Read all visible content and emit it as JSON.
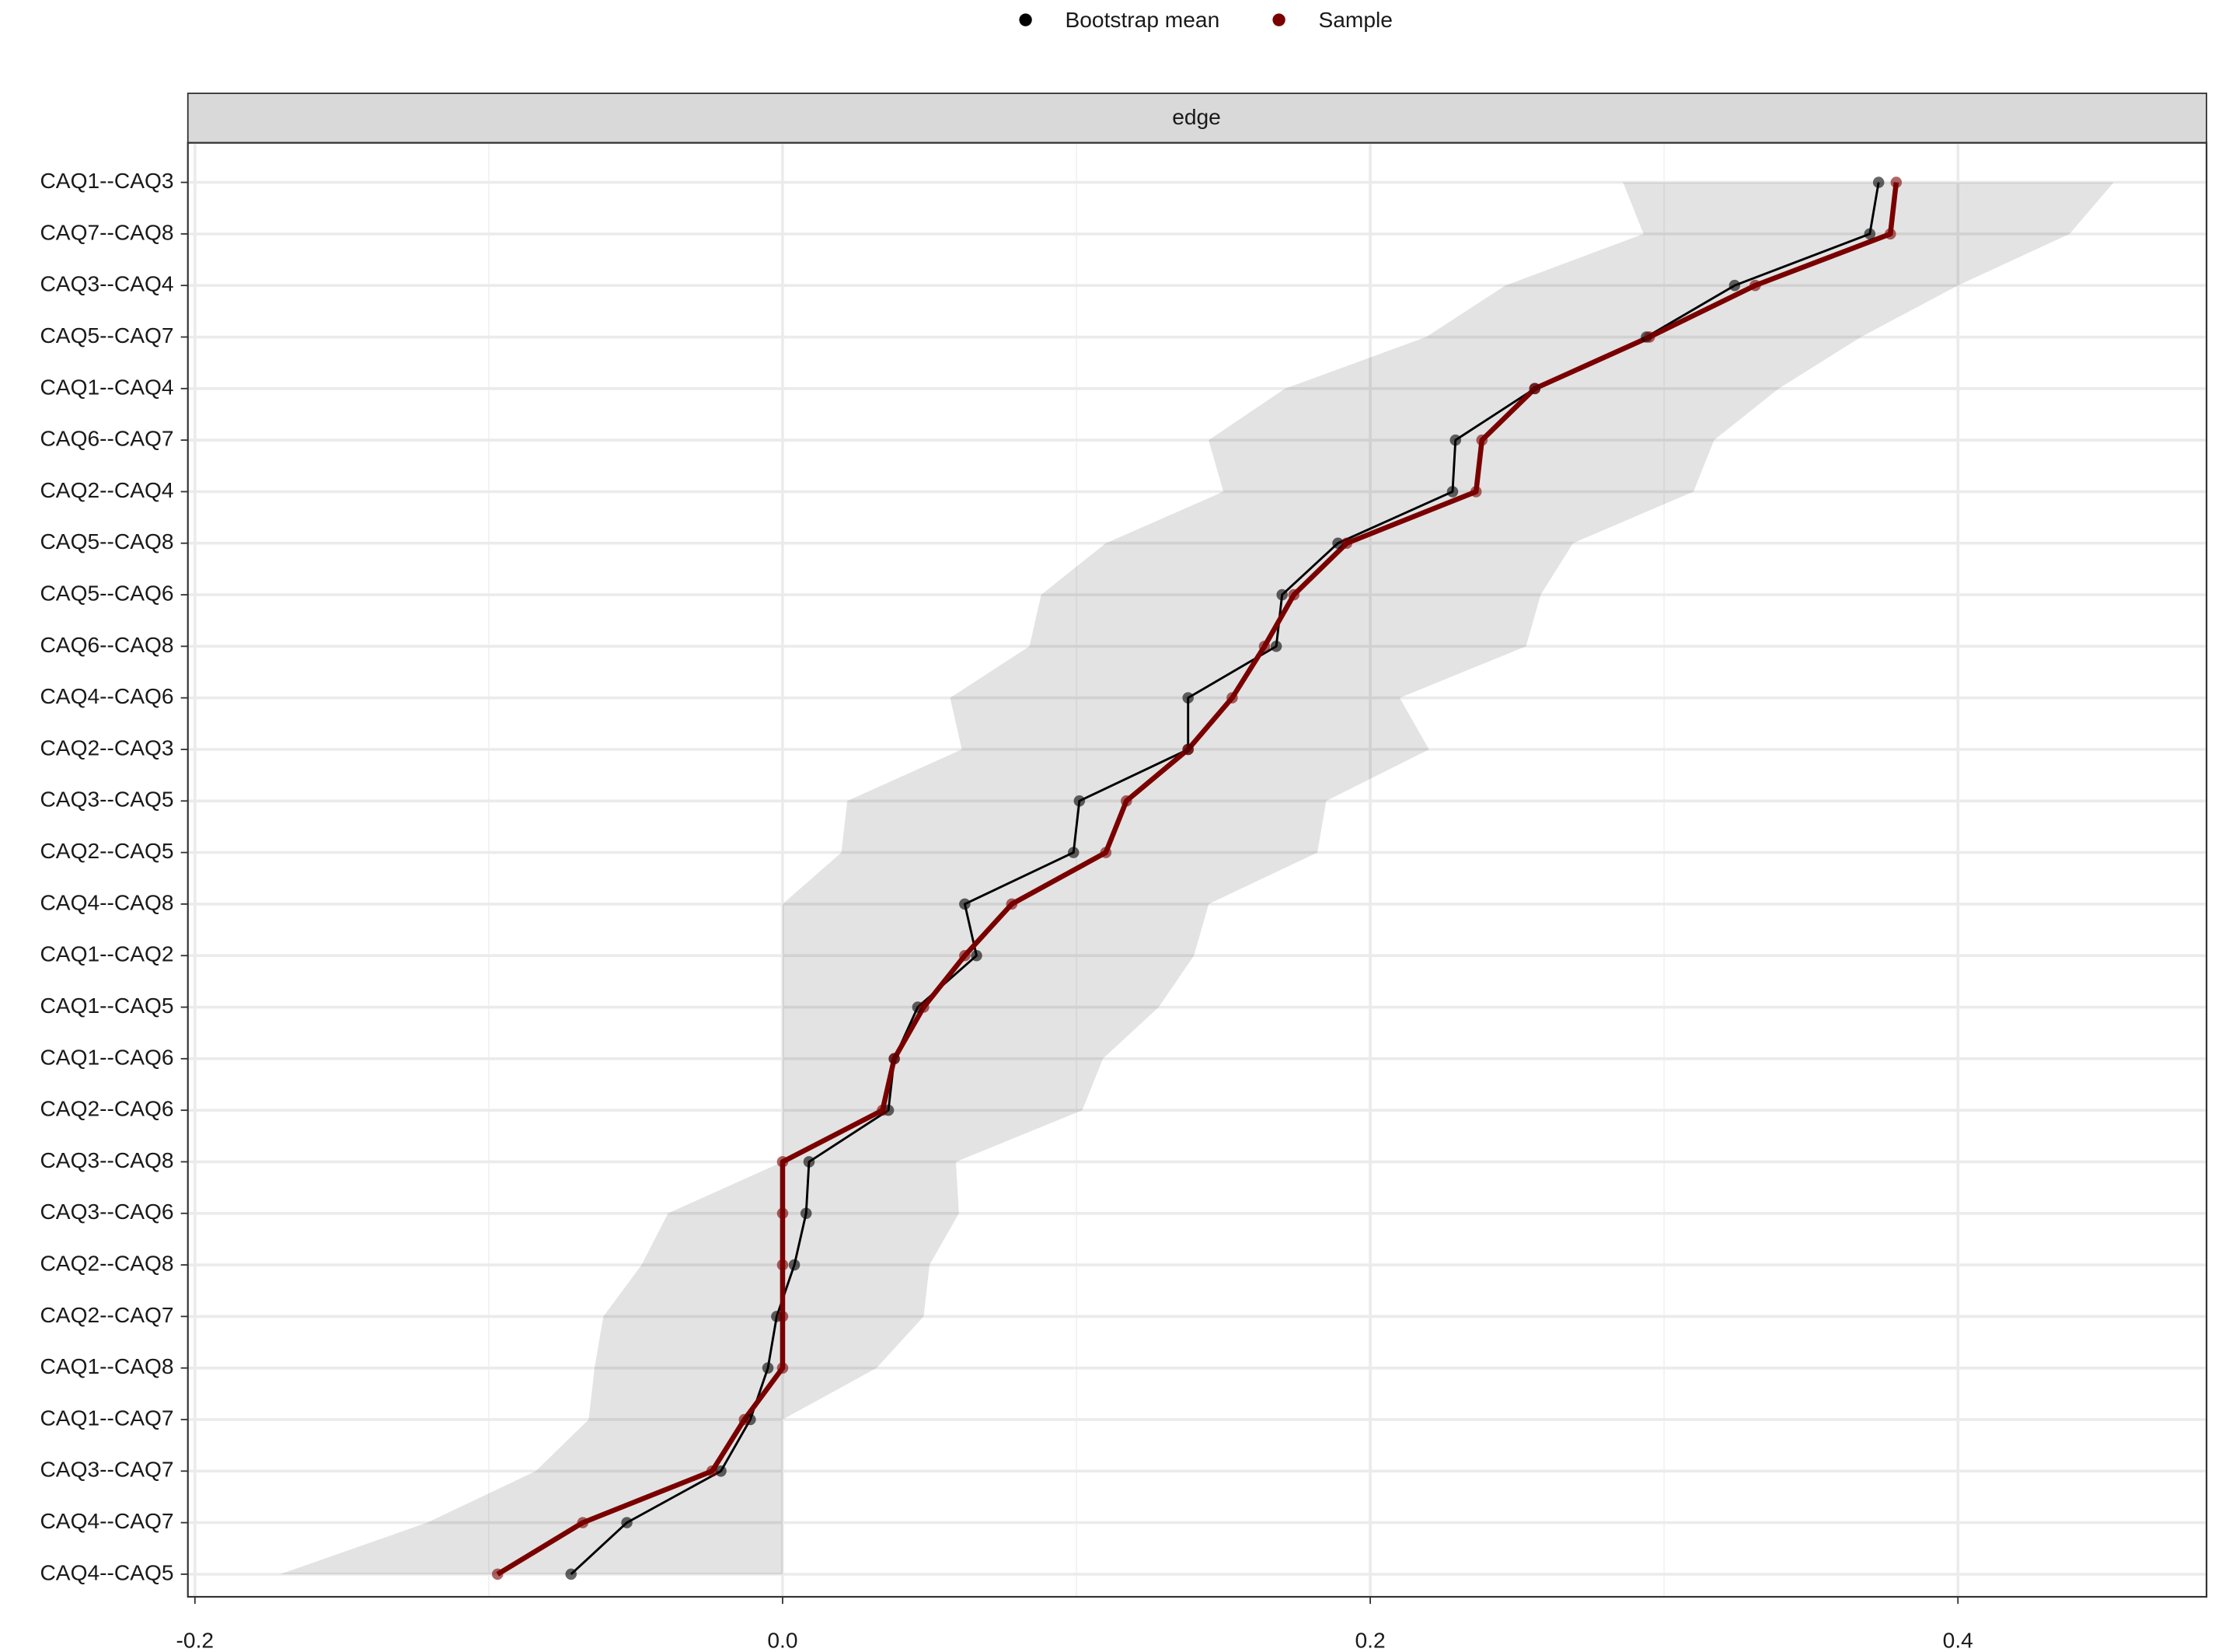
{
  "chart_data": {
    "type": "dot-line",
    "panel_label": "edge",
    "categories": [
      "CAQ1--CAQ3",
      "CAQ7--CAQ8",
      "CAQ3--CAQ4",
      "CAQ5--CAQ7",
      "CAQ1--CAQ4",
      "CAQ6--CAQ7",
      "CAQ2--CAQ4",
      "CAQ5--CAQ8",
      "CAQ5--CAQ6",
      "CAQ6--CAQ8",
      "CAQ4--CAQ6",
      "CAQ2--CAQ3",
      "CAQ3--CAQ5",
      "CAQ2--CAQ5",
      "CAQ4--CAQ8",
      "CAQ1--CAQ2",
      "CAQ1--CAQ5",
      "CAQ1--CAQ6",
      "CAQ2--CAQ6",
      "CAQ3--CAQ8",
      "CAQ3--CAQ6",
      "CAQ2--CAQ8",
      "CAQ2--CAQ7",
      "CAQ1--CAQ8",
      "CAQ1--CAQ7",
      "CAQ3--CAQ7",
      "CAQ4--CAQ7",
      "CAQ4--CAQ5"
    ],
    "series": [
      {
        "name": "Bootstrap mean",
        "color": "#000000",
        "values": [
          0.373,
          0.37,
          0.324,
          0.294,
          0.256,
          0.229,
          0.228,
          0.189,
          0.17,
          0.168,
          0.138,
          0.138,
          0.101,
          0.099,
          0.062,
          0.066,
          0.046,
          0.038,
          0.036,
          0.009,
          0.008,
          0.004,
          -0.002,
          -0.005,
          -0.011,
          -0.021,
          -0.053,
          -0.072
        ]
      },
      {
        "name": "Sample",
        "color": "#7a0000",
        "values": [
          0.379,
          0.377,
          0.331,
          0.295,
          0.256,
          0.238,
          0.236,
          0.192,
          0.174,
          0.164,
          0.153,
          0.138,
          0.117,
          0.11,
          0.078,
          0.062,
          0.048,
          0.038,
          0.034,
          0,
          0,
          0,
          0,
          0,
          -0.013,
          -0.024,
          -0.068,
          -0.097
        ]
      }
    ],
    "band": {
      "lower": [
        0.286,
        0.293,
        0.246,
        0.219,
        0.171,
        0.145,
        0.15,
        0.11,
        0.088,
        0.084,
        0.057,
        0.061,
        0.022,
        0.02,
        0,
        0,
        0,
        0,
        0,
        0,
        -0.039,
        -0.048,
        -0.061,
        -0.064,
        -0.066,
        -0.084,
        -0.121,
        -0.171
      ],
      "upper": [
        0.453,
        0.438,
        0.4,
        0.367,
        0.339,
        0.317,
        0.31,
        0.269,
        0.258,
        0.253,
        0.21,
        0.22,
        0.185,
        0.182,
        0.145,
        0.14,
        0.128,
        0.109,
        0.102,
        0.059,
        0.06,
        0.05,
        0.048,
        0.032,
        0,
        0,
        0,
        0
      ]
    },
    "xlim": [
      -0.2024,
      0.4846
    ],
    "xticks": [
      {
        "value": -0.2,
        "label": "-0.2"
      },
      {
        "value": 0,
        "label": "0.0"
      },
      {
        "value": 0.2,
        "label": "0.2"
      },
      {
        "value": 0.4,
        "label": "0.4"
      }
    ],
    "grid": true,
    "legend": "top"
  }
}
